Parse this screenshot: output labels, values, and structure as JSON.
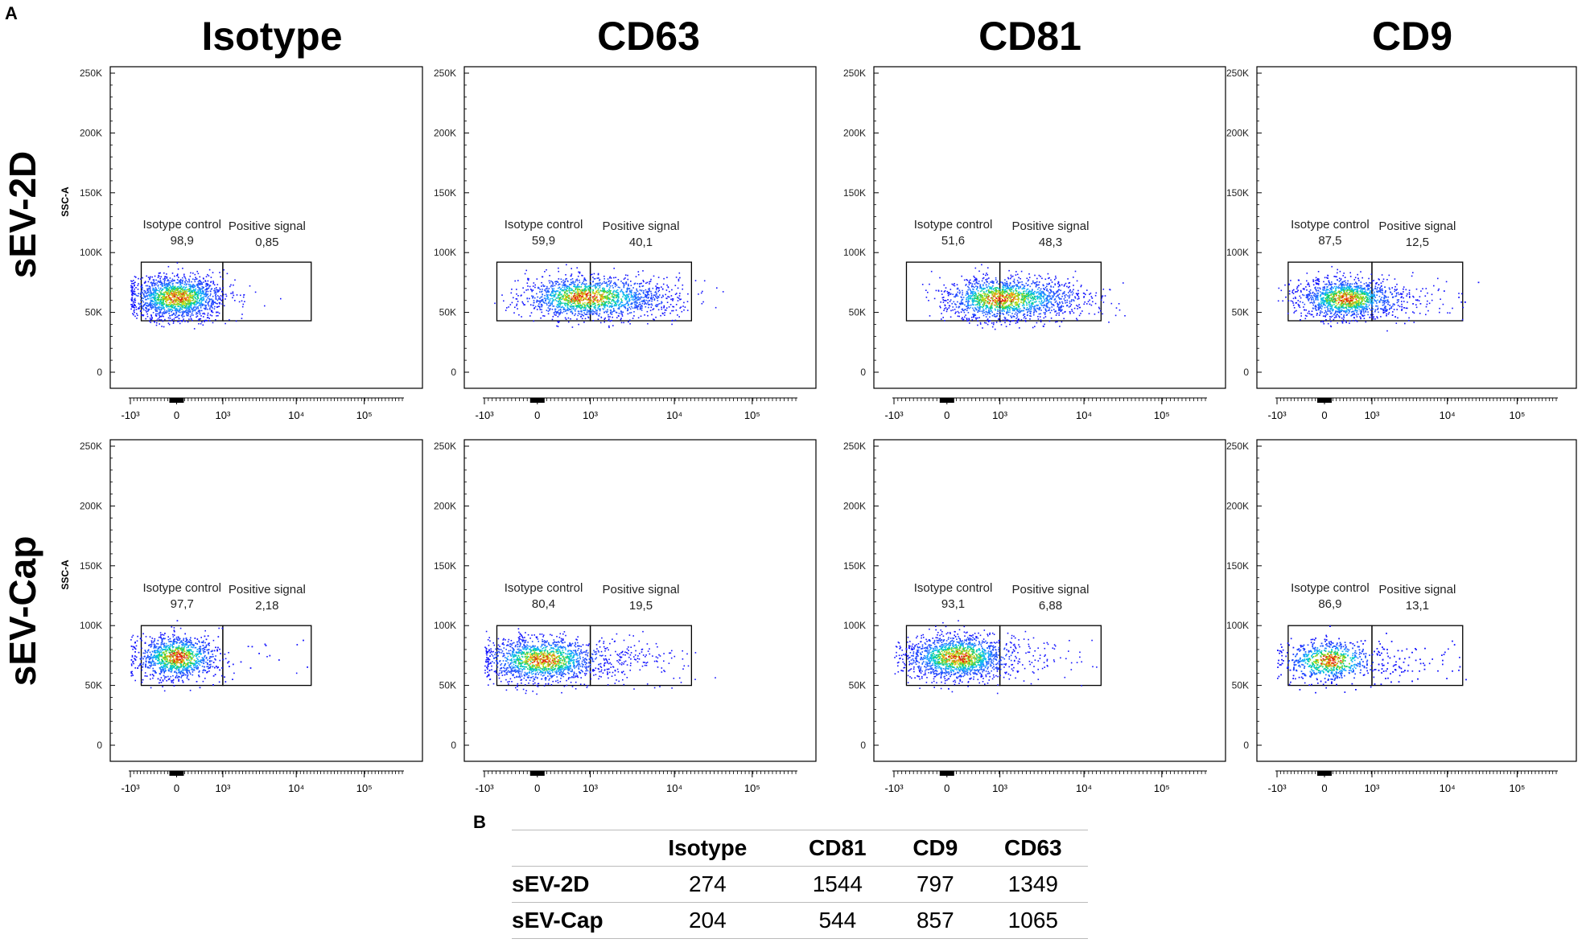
{
  "panel_labels": {
    "a": "A",
    "b": "B"
  },
  "chart_data": [
    {
      "type": "scatter",
      "column": "Isotype",
      "row": "sEV-2D",
      "ylabel": "SSC-A",
      "gate_left_label": "Isotype control",
      "gate_right_label": "Positive signal",
      "gate_left_pct": "98,9",
      "gate_right_pct": "0,85",
      "ylim": [
        0,
        250000
      ],
      "y_ticks": [
        "0",
        "50K",
        "100K",
        "150K",
        "200K",
        "250K"
      ],
      "x_ticks": [
        "-10³",
        "0",
        "10³",
        "10⁴",
        "10⁵"
      ],
      "gate_y_range": [
        43000,
        92000
      ],
      "x_split": 1.0,
      "cluster_center": [
        0.0,
        63000
      ],
      "cluster_spread": [
        0.5,
        9000
      ],
      "right_fraction": 0.0085
    },
    {
      "type": "scatter",
      "column": "CD63",
      "row": "sEV-2D",
      "ylabel": "",
      "gate_left_label": "Isotype control",
      "gate_right_label": "Positive signal",
      "gate_left_pct": "59,9",
      "gate_right_pct": "40,1",
      "ylim": [
        0,
        250000
      ],
      "y_ticks": [
        "0",
        "50K",
        "100K",
        "150K",
        "200K",
        "250K"
      ],
      "x_ticks": [
        "-10³",
        "0",
        "10³",
        "10⁴",
        "10⁵"
      ],
      "gate_y_range": [
        43000,
        92000
      ],
      "x_split": 1.0,
      "cluster_center": [
        0.85,
        63000
      ],
      "cluster_spread": [
        0.55,
        9000
      ],
      "right_fraction": 0.401
    },
    {
      "type": "scatter",
      "column": "CD81",
      "row": "sEV-2D",
      "ylabel": "",
      "gate_left_label": "Isotype control",
      "gate_right_label": "Positive signal",
      "gate_left_pct": "51,6",
      "gate_right_pct": "48,3",
      "ylim": [
        0,
        250000
      ],
      "y_ticks": [
        "0",
        "50K",
        "100K",
        "150K",
        "200K",
        "250K"
      ],
      "x_ticks": [
        "-10³",
        "0",
        "10³",
        "10⁴",
        "10⁵"
      ],
      "gate_y_range": [
        43000,
        92000
      ],
      "x_split": 1.0,
      "cluster_center": [
        0.95,
        62000
      ],
      "cluster_spread": [
        0.5,
        9000
      ],
      "right_fraction": 0.483
    },
    {
      "type": "scatter",
      "column": "CD9",
      "row": "sEV-2D",
      "ylabel": "",
      "gate_left_label": "Isotype control",
      "gate_right_label": "Positive signal",
      "gate_left_pct": "87,5",
      "gate_right_pct": "12,5",
      "ylim": [
        0,
        250000
      ],
      "y_ticks": [
        "0",
        "50K",
        "100K",
        "150K",
        "200K",
        "250K"
      ],
      "x_ticks": [
        "-10³",
        "0",
        "10³",
        "10⁴",
        "10⁵"
      ],
      "gate_y_range": [
        43000,
        92000
      ],
      "x_split": 1.0,
      "cluster_center": [
        0.45,
        62000
      ],
      "cluster_spread": [
        0.5,
        8500
      ],
      "right_fraction": 0.125
    },
    {
      "type": "scatter",
      "column": "Isotype",
      "row": "sEV-Cap",
      "ylabel": "SSC-A",
      "gate_left_label": "Isotype control",
      "gate_right_label": "Positive signal",
      "gate_left_pct": "97,7",
      "gate_right_pct": "2,18",
      "ylim": [
        0,
        250000
      ],
      "y_ticks": [
        "0",
        "50K",
        "100K",
        "150K",
        "200K",
        "250K"
      ],
      "x_ticks": [
        "-10³",
        "0",
        "10³",
        "10⁴",
        "10⁵"
      ],
      "gate_y_range": [
        50000,
        100000
      ],
      "x_split": 1.0,
      "cluster_center": [
        0.0,
        74000
      ],
      "cluster_spread": [
        0.45,
        9500
      ],
      "right_fraction": 0.0218
    },
    {
      "type": "scatter",
      "column": "CD63",
      "row": "sEV-Cap",
      "ylabel": "",
      "gate_left_label": "Isotype control",
      "gate_right_label": "Positive signal",
      "gate_left_pct": "80,4",
      "gate_right_pct": "19,5",
      "ylim": [
        0,
        250000
      ],
      "y_ticks": [
        "0",
        "50K",
        "100K",
        "150K",
        "200K",
        "250K"
      ],
      "x_ticks": [
        "-10³",
        "0",
        "10³",
        "10⁴",
        "10⁵"
      ],
      "gate_y_range": [
        50000,
        100000
      ],
      "x_split": 1.0,
      "cluster_center": [
        0.1,
        72000
      ],
      "cluster_spread": [
        0.55,
        9500
      ],
      "right_fraction": 0.195
    },
    {
      "type": "scatter",
      "column": "CD81",
      "row": "sEV-Cap",
      "ylabel": "",
      "gate_left_label": "Isotype control",
      "gate_right_label": "Positive signal",
      "gate_left_pct": "93,1",
      "gate_right_pct": "6,88",
      "ylim": [
        0,
        250000
      ],
      "y_ticks": [
        "0",
        "50K",
        "100K",
        "150K",
        "200K",
        "250K"
      ],
      "x_ticks": [
        "-10³",
        "0",
        "10³",
        "10⁴",
        "10⁵"
      ],
      "gate_y_range": [
        50000,
        100000
      ],
      "x_split": 1.0,
      "cluster_center": [
        0.2,
        74000
      ],
      "cluster_spread": [
        0.5,
        9500
      ],
      "right_fraction": 0.0688
    },
    {
      "type": "scatter",
      "column": "CD9",
      "row": "sEV-Cap",
      "ylabel": "",
      "gate_left_label": "Isotype control",
      "gate_right_label": "Positive signal",
      "gate_left_pct": "86,9",
      "gate_right_pct": "13,1",
      "ylim": [
        0,
        250000
      ],
      "y_ticks": [
        "0",
        "50K",
        "100K",
        "150K",
        "200K",
        "250K"
      ],
      "x_ticks": [
        "-10³",
        "0",
        "10³",
        "10⁴",
        "10⁵"
      ],
      "gate_y_range": [
        50000,
        100000
      ],
      "x_split": 1.0,
      "cluster_center": [
        0.1,
        71000
      ],
      "cluster_spread": [
        0.5,
        9000
      ],
      "right_fraction": 0.131
    }
  ],
  "column_titles": [
    "Isotype",
    "CD63",
    "CD81",
    "CD9"
  ],
  "row_titles": [
    "sEV-2D",
    "sEV-Cap"
  ],
  "table_b": {
    "headers": [
      "",
      "Isotype",
      "CD81",
      "CD9",
      "CD63"
    ],
    "rows": [
      {
        "label": "sEV-2D",
        "values": [
          "274",
          "1544",
          "797",
          "1349"
        ]
      },
      {
        "label": "sEV-Cap",
        "values": [
          "204",
          "544",
          "857",
          "1065"
        ]
      }
    ]
  }
}
